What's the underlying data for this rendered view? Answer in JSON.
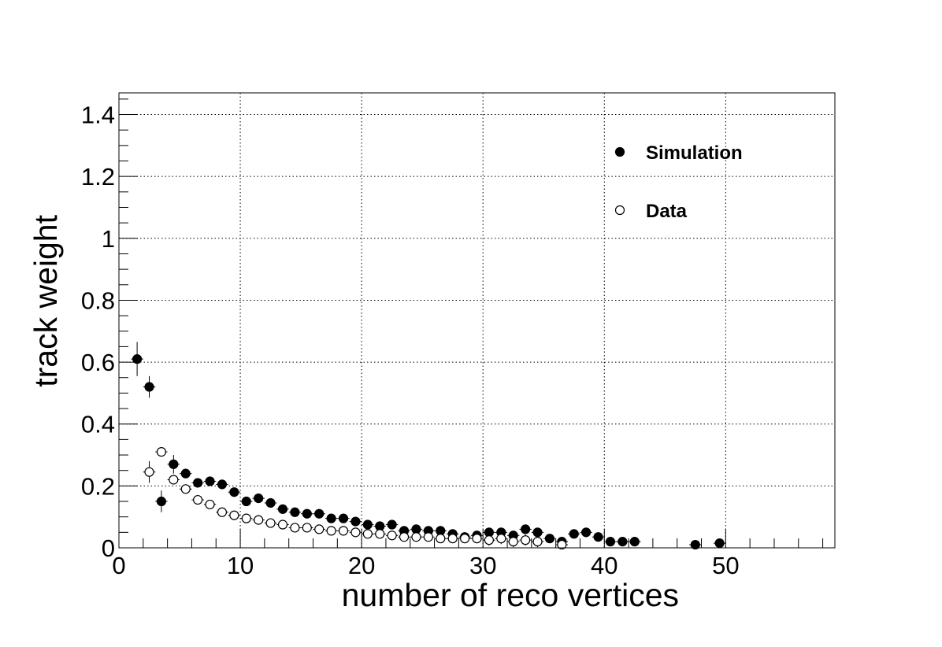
{
  "chart_data": {
    "type": "scatter",
    "xlabel": "number of reco vertices",
    "ylabel": "track weight",
    "xlim": [
      0,
      59
    ],
    "ylim": [
      0,
      1.47
    ],
    "xticks": [
      0,
      10,
      20,
      30,
      40,
      50
    ],
    "yticks": [
      0,
      0.2,
      0.4,
      0.6,
      0.8,
      1,
      1.2,
      1.4
    ],
    "xtick_labels": [
      "0",
      "10",
      "20",
      "30",
      "40",
      "50"
    ],
    "ytick_labels": [
      "0",
      "0.2",
      "0.4",
      "0.6",
      "0.8",
      "1",
      "1.2",
      "1.4"
    ],
    "grid": true,
    "legend_position": "top-right",
    "series": [
      {
        "name": "Simulation",
        "marker": "filled-circle",
        "color": "#000000",
        "x": [
          1.5,
          2.5,
          3.5,
          4.5,
          5.5,
          6.5,
          7.5,
          8.5,
          9.5,
          10.5,
          11.5,
          12.5,
          13.5,
          14.5,
          15.5,
          16.5,
          17.5,
          18.5,
          19.5,
          20.5,
          21.5,
          22.5,
          23.5,
          24.5,
          25.5,
          26.5,
          27.5,
          28.5,
          29.5,
          30.5,
          31.5,
          32.5,
          33.5,
          34.5,
          35.5,
          36.5,
          37.5,
          38.5,
          39.5,
          40.5,
          41.5,
          42.5,
          47.5,
          49.5
        ],
        "y": [
          0.61,
          0.52,
          0.15,
          0.27,
          0.24,
          0.21,
          0.215,
          0.205,
          0.18,
          0.15,
          0.16,
          0.145,
          0.125,
          0.115,
          0.11,
          0.11,
          0.095,
          0.095,
          0.085,
          0.075,
          0.07,
          0.075,
          0.055,
          0.06,
          0.055,
          0.055,
          0.045,
          0.035,
          0.04,
          0.05,
          0.05,
          0.04,
          0.06,
          0.05,
          0.03,
          0.02,
          0.045,
          0.05,
          0.035,
          0.02,
          0.02,
          0.02,
          0.01,
          0.015
        ],
        "yerr": [
          0.055,
          0.035,
          0.035,
          0.03,
          0.015,
          0.015,
          0.01,
          0.01,
          0.01,
          0.008,
          0.008,
          0.008,
          0.007,
          0.007,
          0.007,
          0.007,
          0.006,
          0.006,
          0.006,
          0.006,
          0.006,
          0.006,
          0.006,
          0.006,
          0.006,
          0.006,
          0.006,
          0.006,
          0.007,
          0.007,
          0.007,
          0.007,
          0.008,
          0.008,
          0.008,
          0.008,
          0.009,
          0.009,
          0.009,
          0.009,
          0.01,
          0.01,
          0.01,
          0.01
        ]
      },
      {
        "name": "Data",
        "marker": "open-circle",
        "color": "#000000",
        "x": [
          2.5,
          3.5,
          4.5,
          5.5,
          6.5,
          7.5,
          8.5,
          9.5,
          10.5,
          11.5,
          12.5,
          13.5,
          14.5,
          15.5,
          16.5,
          17.5,
          18.5,
          19.5,
          20.5,
          21.5,
          22.5,
          23.5,
          24.5,
          25.5,
          26.5,
          27.5,
          28.5,
          29.5,
          30.5,
          31.5,
          32.5,
          33.5,
          34.5,
          36.5
        ],
        "y": [
          0.245,
          0.31,
          0.22,
          0.19,
          0.155,
          0.14,
          0.115,
          0.105,
          0.095,
          0.09,
          0.08,
          0.075,
          0.065,
          0.065,
          0.06,
          0.055,
          0.055,
          0.05,
          0.045,
          0.045,
          0.04,
          0.035,
          0.035,
          0.035,
          0.03,
          0.03,
          0.03,
          0.03,
          0.025,
          0.03,
          0.02,
          0.025,
          0.02,
          0.01
        ],
        "yerr": [
          0.035,
          0.012,
          0.012,
          0.01,
          0.008,
          0.007,
          0.006,
          0.006,
          0.005,
          0.005,
          0.005,
          0.005,
          0.005,
          0.005,
          0.005,
          0.005,
          0.005,
          0.005,
          0.005,
          0.005,
          0.005,
          0.005,
          0.005,
          0.005,
          0.005,
          0.006,
          0.015,
          0.015,
          0.018,
          0.018,
          0.018,
          0.018,
          0.018,
          0.012
        ]
      }
    ]
  }
}
